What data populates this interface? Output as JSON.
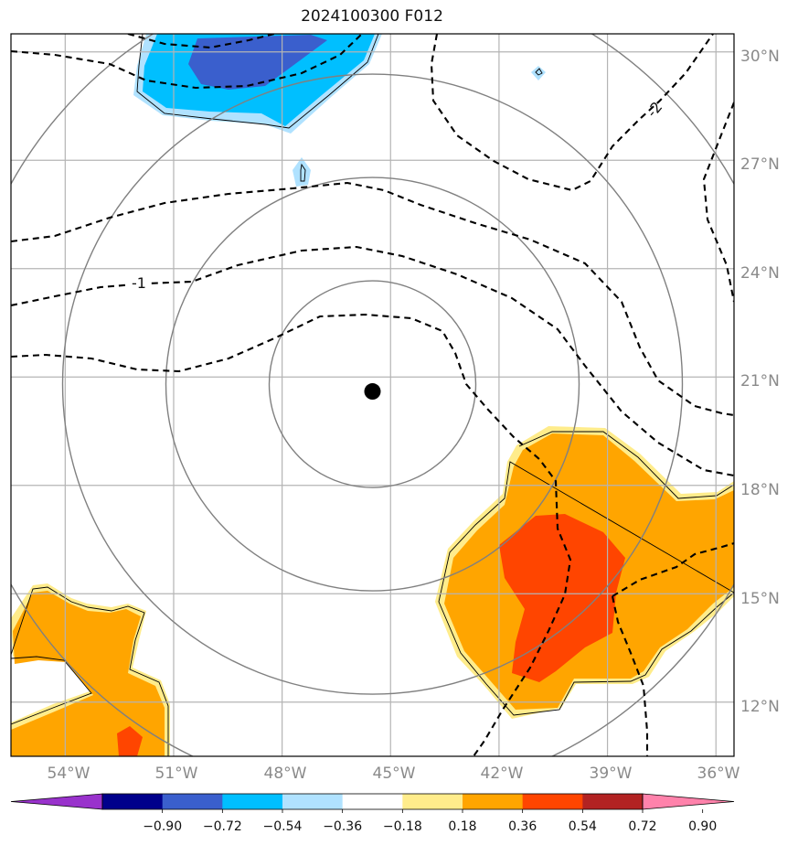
{
  "title": "2024100300 F012",
  "map": {
    "lon_range": [
      -55.5,
      -35.5
    ],
    "lat_range": [
      10.5,
      30.5
    ],
    "lon_ticks": [
      "54°W",
      "51°W",
      "48°W",
      "45°W",
      "42°W",
      "39°W",
      "36°W"
    ],
    "lat_ticks": [
      "12°N",
      "15°N",
      "18°N",
      "21°N",
      "24°N",
      "27°N",
      "30°N"
    ],
    "storm_center": {
      "lon": -45.5,
      "lat": 20.6
    },
    "range_rings": 4,
    "contour_labels": [
      "-1",
      "-2"
    ]
  },
  "colorbar": {
    "ticks": [
      "−0.90",
      "−0.72",
      "−0.54",
      "−0.36",
      "−0.18",
      "0.18",
      "0.36",
      "0.54",
      "0.72",
      "0.90"
    ],
    "colors": [
      "#9932cc",
      "#00008b",
      "#3a5fcd",
      "#00bfff",
      "#b0e2ff",
      "#ffffff",
      "#ffec8b",
      "#ffa500",
      "#ff4500",
      "#b22222",
      "#ff82ab"
    ]
  }
}
